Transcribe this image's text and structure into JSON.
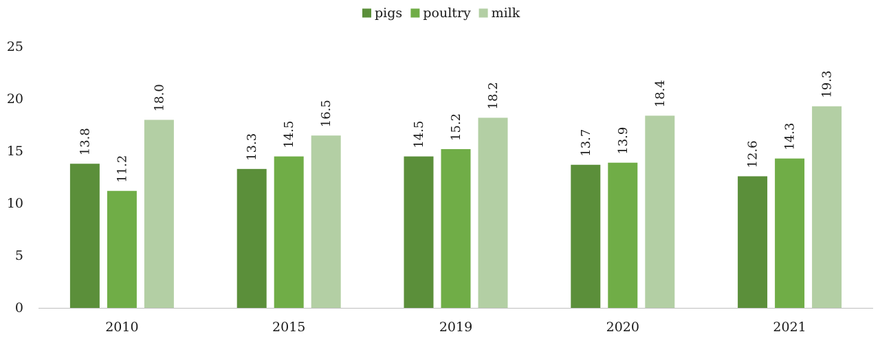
{
  "chart_data": {
    "type": "bar",
    "title": "",
    "xlabel": "",
    "ylabel": "",
    "categories": [
      "2010",
      "2015",
      "2019",
      "2020",
      "2021"
    ],
    "series": [
      {
        "name": "pigs",
        "color": "#5b8f3a",
        "values": [
          13.8,
          13.3,
          14.5,
          13.7,
          12.6
        ],
        "labels": [
          "13.8",
          "13.3",
          "14.5",
          "13.7",
          "12.6"
        ]
      },
      {
        "name": "poultry",
        "color": "#70ad47",
        "values": [
          11.2,
          14.5,
          15.2,
          13.9,
          14.3
        ],
        "labels": [
          "11.2",
          "14.5",
          "15.2",
          "13.9",
          "14.3"
        ]
      },
      {
        "name": "milk",
        "color": "#b3cfa4",
        "values": [
          18.0,
          16.5,
          18.2,
          18.4,
          19.3
        ],
        "labels": [
          "18.0",
          "16.5",
          "18.2",
          "18.4",
          "19.3"
        ]
      }
    ],
    "ylim": [
      0,
      25
    ],
    "yticks": [
      0,
      5,
      10,
      15,
      20,
      25
    ],
    "grid": false,
    "legend_position": "top-center"
  }
}
